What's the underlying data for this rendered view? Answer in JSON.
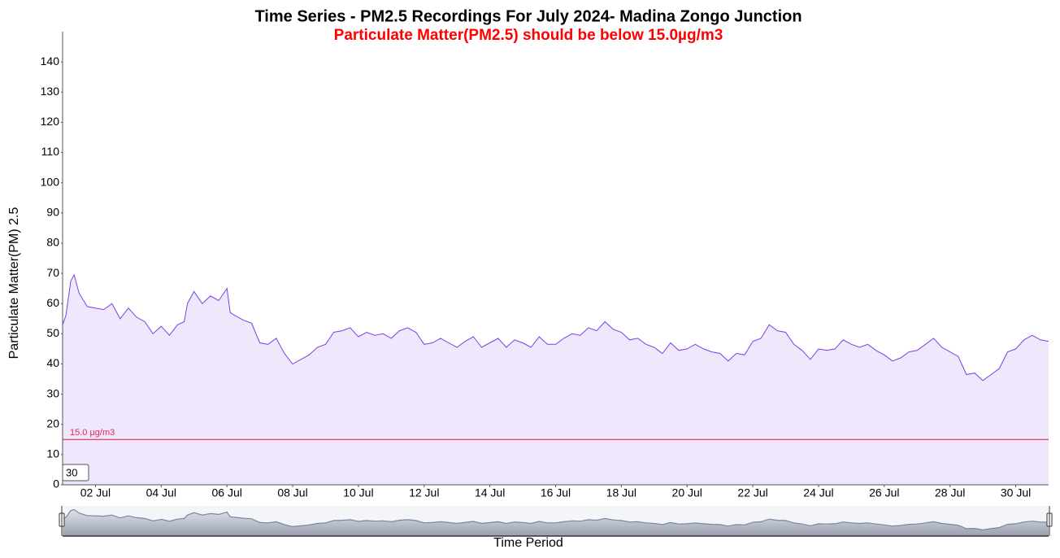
{
  "chart_data": {
    "type": "area",
    "title": "Time Series - PM2.5 Recordings For July 2024- Madina Zongo Junction",
    "subtitle": "Particulate Matter(PM2.5) should be below 15.0µg/m3",
    "y_label": "Particulate Matter(PM) 2.5",
    "x_label": "Time Period",
    "zoom_input": 30,
    "threshold": {
      "value": 15,
      "label": "15.0 µg/m3",
      "color": "#e8264f"
    },
    "color": "#7b3fe4",
    "fill": "#efe8fd",
    "grid": false,
    "xlim": [
      1,
      31
    ],
    "ylim": [
      0,
      150
    ],
    "yticks": [
      0,
      10,
      20,
      30,
      40,
      50,
      60,
      70,
      80,
      90,
      100,
      110,
      120,
      130,
      140
    ],
    "xticks": [
      {
        "value": 2,
        "label": "02 Jul"
      },
      {
        "value": 4,
        "label": "04 Jul"
      },
      {
        "value": 6,
        "label": "06 Jul"
      },
      {
        "value": 8,
        "label": "08 Jul"
      },
      {
        "value": 10,
        "label": "10 Jul"
      },
      {
        "value": 12,
        "label": "12 Jul"
      },
      {
        "value": 14,
        "label": "14 Jul"
      },
      {
        "value": 16,
        "label": "16 Jul"
      },
      {
        "value": 18,
        "label": "18 Jul"
      },
      {
        "value": 20,
        "label": "20 Jul"
      },
      {
        "value": 22,
        "label": "22 Jul"
      },
      {
        "value": 24,
        "label": "24 Jul"
      },
      {
        "value": 26,
        "label": "26 Jul"
      },
      {
        "value": 28,
        "label": "28 Jul"
      },
      {
        "value": 30,
        "label": "30 Jul"
      }
    ],
    "x": [
      1,
      1.1,
      1.25,
      1.35,
      1.5,
      1.75,
      2,
      2.25,
      2.5,
      2.75,
      3,
      3.25,
      3.5,
      3.75,
      4,
      4.25,
      4.5,
      4.7,
      4.8,
      5,
      5.25,
      5.5,
      5.75,
      6,
      6.1,
      6.25,
      6.5,
      6.75,
      7,
      7.25,
      7.5,
      7.75,
      8,
      8.25,
      8.5,
      8.75,
      9,
      9.25,
      9.5,
      9.75,
      10,
      10.25,
      10.5,
      10.75,
      11,
      11.25,
      11.5,
      11.75,
      12,
      12.25,
      12.5,
      12.75,
      13,
      13.25,
      13.5,
      13.75,
      14,
      14.25,
      14.5,
      14.75,
      15,
      15.25,
      15.5,
      15.75,
      16,
      16.25,
      16.5,
      16.75,
      17,
      17.25,
      17.5,
      17.75,
      18,
      18.25,
      18.5,
      18.75,
      19,
      19.25,
      19.5,
      19.75,
      20,
      20.25,
      20.5,
      20.75,
      21,
      21.25,
      21.5,
      21.75,
      22,
      22.25,
      22.5,
      22.75,
      23,
      23.25,
      23.5,
      23.75,
      24,
      24.25,
      24.5,
      24.75,
      25,
      25.25,
      25.5,
      25.75,
      26,
      26.25,
      26.5,
      26.75,
      27,
      27.25,
      27.5,
      27.75,
      28,
      28.25,
      28.5,
      28.75,
      29,
      29.25,
      29.5,
      29.75,
      30,
      30.25,
      30.5,
      30.75,
      31
    ],
    "values": [
      53,
      56,
      67.5,
      69.5,
      63.5,
      59,
      58.5,
      58,
      60,
      55,
      58.5,
      55.5,
      54,
      50,
      52.5,
      49.5,
      53,
      54,
      60,
      64,
      60,
      62.5,
      61,
      65,
      57,
      56,
      54.5,
      53.5,
      47,
      46.5,
      48.5,
      43.5,
      40,
      41.5,
      43,
      45.5,
      46.5,
      50.5,
      51,
      52,
      49,
      50.5,
      49.5,
      50,
      48.5,
      51,
      52,
      50.5,
      46.5,
      47,
      48.5,
      47,
      45.5,
      47.5,
      49,
      45.5,
      47,
      48.5,
      45.5,
      48,
      47,
      45.5,
      49,
      46.5,
      46.5,
      48.5,
      50,
      49.5,
      52,
      51,
      54,
      51.5,
      50.5,
      48,
      48.5,
      46.5,
      45.5,
      43.5,
      47,
      44.5,
      45,
      46.5,
      45,
      44,
      43.5,
      41,
      43.5,
      43,
      47.5,
      48.5,
      53,
      51,
      50.5,
      46.5,
      44.5,
      41.5,
      45,
      44.5,
      45,
      48,
      46.5,
      45.5,
      46.5,
      44.5,
      43,
      41,
      42,
      44,
      44.5,
      46.5,
      48.5,
      45.5,
      44,
      42.5,
      36.5,
      37,
      34.5,
      36.5,
      38.5,
      44,
      45,
      48,
      49.5,
      48,
      47.5
    ]
  }
}
